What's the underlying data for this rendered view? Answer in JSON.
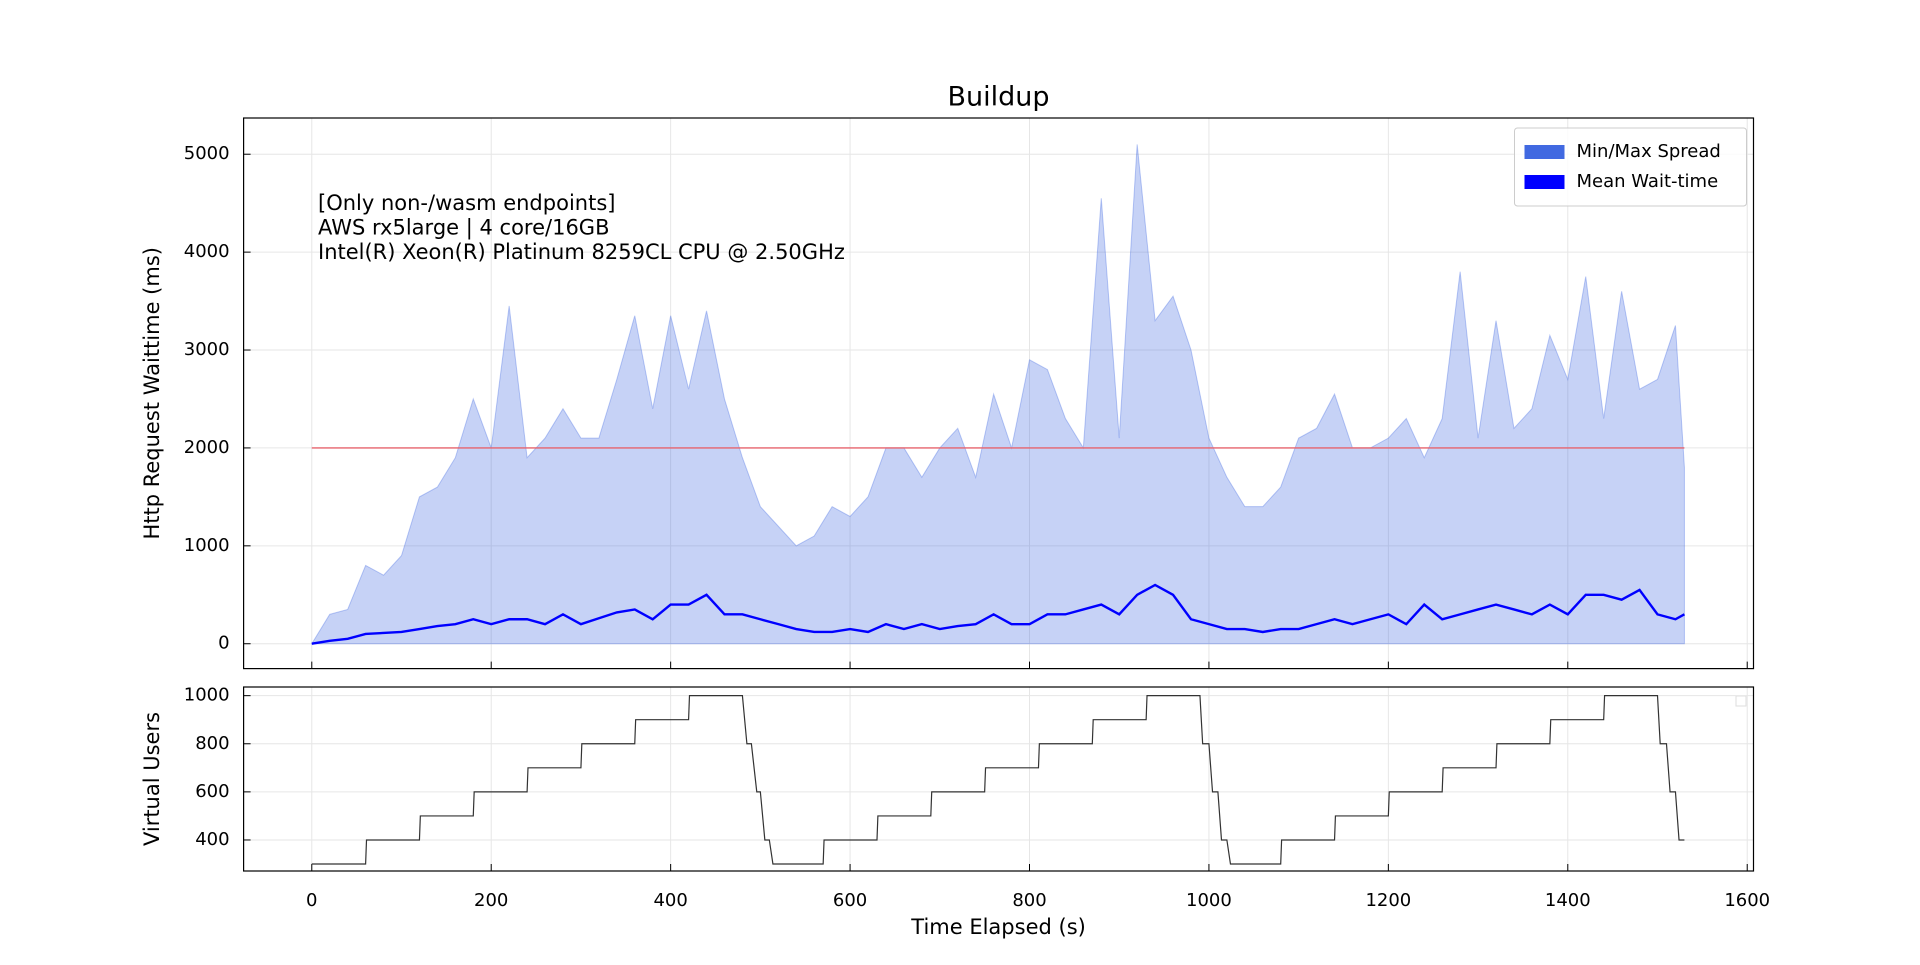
{
  "chart_data": [
    {
      "type": "line",
      "title": "Buildup",
      "ylabel": "Http Request Waittime (ms)",
      "annotation": [
        "[Only non-/wasm endpoints]",
        "AWS rx5large | 4 core/16GB",
        "Intel(R) Xeon(R) Platinum 8259CL CPU @ 2.50GHz"
      ],
      "x": [
        0,
        20,
        40,
        60,
        80,
        100,
        120,
        140,
        160,
        180,
        200,
        220,
        240,
        260,
        280,
        300,
        320,
        340,
        360,
        380,
        400,
        420,
        440,
        460,
        480,
        500,
        520,
        540,
        560,
        580,
        600,
        620,
        640,
        660,
        680,
        700,
        720,
        740,
        760,
        780,
        800,
        820,
        840,
        860,
        880,
        900,
        920,
        940,
        960,
        980,
        1000,
        1020,
        1040,
        1060,
        1080,
        1100,
        1120,
        1140,
        1160,
        1180,
        1200,
        1220,
        1240,
        1260,
        1280,
        1300,
        1320,
        1340,
        1360,
        1380,
        1400,
        1420,
        1440,
        1460,
        1480,
        1500,
        1520,
        1530
      ],
      "series": [
        {
          "name": "Min/Max Spread",
          "kind": "band",
          "color": "#4169e1",
          "lower": [
            0,
            0,
            0,
            0,
            0,
            0,
            0,
            0,
            0,
            0,
            0,
            0,
            0,
            0,
            0,
            0,
            0,
            0,
            0,
            0,
            0,
            0,
            0,
            0,
            0,
            0,
            0,
            0,
            0,
            0,
            0,
            0,
            0,
            0,
            0,
            0,
            0,
            0,
            0,
            0,
            0,
            0,
            0,
            0,
            0,
            0,
            0,
            0,
            0,
            0,
            0,
            0,
            0,
            0,
            0,
            0,
            0,
            0,
            0,
            0,
            0,
            0,
            0,
            0,
            0,
            0,
            0,
            0,
            0,
            0,
            0,
            0,
            0,
            0,
            0,
            0,
            0,
            0
          ],
          "upper": [
            0,
            300,
            350,
            800,
            700,
            900,
            1500,
            1600,
            1900,
            2500,
            2000,
            3450,
            1900,
            2100,
            2400,
            2100,
            2100,
            2700,
            3350,
            2400,
            3350,
            2600,
            3400,
            2500,
            1900,
            1400,
            1200,
            1000,
            1100,
            1400,
            1300,
            1500,
            2000,
            2000,
            1700,
            2000,
            2200,
            1700,
            2550,
            2000,
            2900,
            2800,
            2300,
            2000,
            4550,
            2100,
            5100,
            3300,
            3550,
            3000,
            2100,
            1700,
            1400,
            1400,
            1600,
            2100,
            2200,
            2550,
            2000,
            2000,
            2100,
            2300,
            1900,
            2300,
            3800,
            2100,
            3300,
            2200,
            2400,
            3150,
            2700,
            3750,
            2300,
            3600,
            2600,
            2700,
            3250,
            1800
          ]
        },
        {
          "name": "Mean Wait-time",
          "kind": "line",
          "color": "#0000ff",
          "values": [
            0,
            30,
            50,
            100,
            110,
            120,
            150,
            180,
            200,
            250,
            200,
            250,
            250,
            200,
            300,
            200,
            260,
            320,
            350,
            250,
            400,
            400,
            500,
            300,
            300,
            250,
            200,
            150,
            120,
            120,
            150,
            120,
            200,
            150,
            200,
            150,
            180,
            200,
            300,
            200,
            200,
            300,
            300,
            350,
            400,
            300,
            500,
            600,
            500,
            250,
            200,
            150,
            150,
            120,
            150,
            150,
            200,
            250,
            200,
            250,
            300,
            200,
            400,
            250,
            300,
            350,
            400,
            350,
            300,
            400,
            300,
            500,
            500,
            450,
            550,
            300,
            250,
            300
          ]
        }
      ],
      "reference_line": {
        "value": 2000,
        "color": "#e8646e"
      },
      "xlim": [
        -76,
        1607
      ],
      "ylim": [
        -254,
        5370
      ],
      "yticks": [
        0,
        1000,
        2000,
        3000,
        4000,
        5000
      ],
      "grid": true,
      "legend": "upper right"
    },
    {
      "type": "line",
      "ylabel": "Virtual Users",
      "xlabel": "Time Elapsed (s)",
      "x": [
        0,
        60,
        61,
        120,
        121,
        180,
        181,
        240,
        241,
        300,
        301,
        360,
        361,
        420,
        421,
        480,
        485,
        490,
        496,
        500,
        505,
        510,
        514,
        570,
        571,
        630,
        631,
        690,
        691,
        750,
        751,
        810,
        811,
        870,
        871,
        930,
        931,
        990,
        993,
        1000,
        1004,
        1010,
        1014,
        1020,
        1024,
        1080,
        1081,
        1140,
        1141,
        1200,
        1201,
        1260,
        1261,
        1320,
        1321,
        1380,
        1381,
        1440,
        1441,
        1500,
        1503,
        1510,
        1514,
        1520,
        1524,
        1530
      ],
      "series": [
        {
          "kind": "line",
          "color": "#333333",
          "values": [
            300,
            300,
            400,
            400,
            500,
            500,
            600,
            600,
            700,
            700,
            800,
            800,
            900,
            900,
            1000,
            1000,
            800,
            800,
            600,
            600,
            400,
            400,
            300,
            300,
            400,
            400,
            500,
            500,
            600,
            600,
            700,
            700,
            800,
            800,
            900,
            900,
            1000,
            1000,
            800,
            800,
            600,
            600,
            400,
            400,
            300,
            300,
            400,
            400,
            500,
            500,
            600,
            600,
            700,
            700,
            800,
            800,
            900,
            900,
            1000,
            1000,
            800,
            800,
            600,
            600,
            400,
            400
          ]
        }
      ],
      "xlim": [
        -76,
        1607
      ],
      "xticks": [
        0,
        200,
        400,
        600,
        800,
        1000,
        1200,
        1400,
        1600
      ],
      "ylim": [
        271,
        1036
      ],
      "yticks": [
        400,
        600,
        800,
        1000
      ],
      "grid": true
    }
  ]
}
